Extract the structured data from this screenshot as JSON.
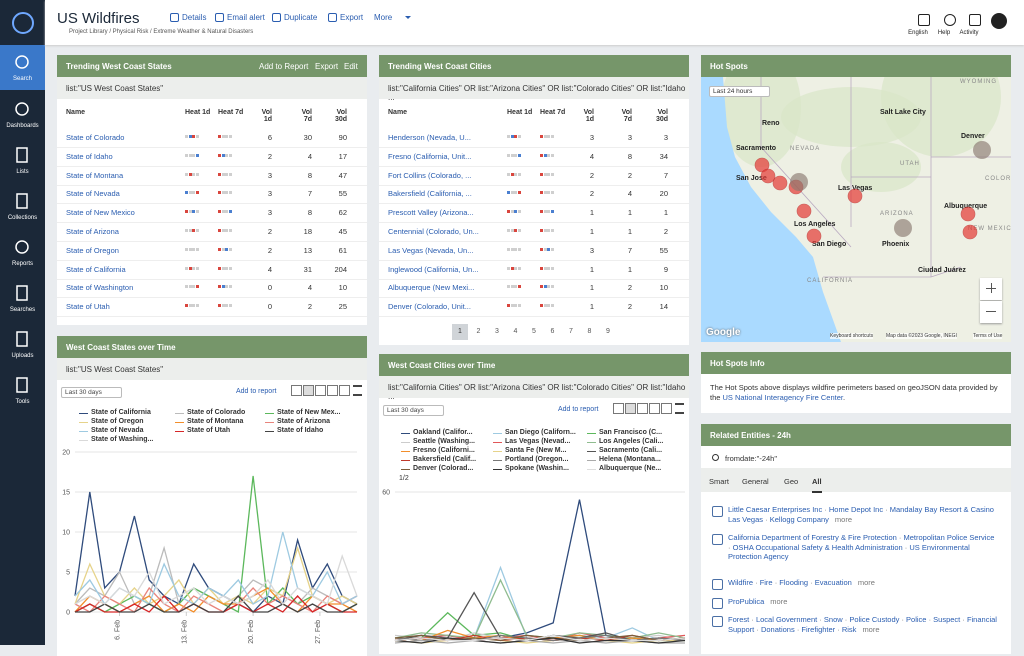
{
  "header": {
    "title": "US Wildfires",
    "actions": [
      "Details",
      "Email alert",
      "Duplicate",
      "Export",
      "More"
    ],
    "breadcrumb": "Project Library / Physical Risk / Extreme Weather & Natural Disasters",
    "right": [
      "English",
      "Help",
      "Activity"
    ]
  },
  "sidebar": [
    "Search",
    "Dashboards",
    "Lists",
    "Collections",
    "Reports",
    "Searches",
    "Uploads",
    "Tools"
  ],
  "states_table": {
    "title": "Trending West Coast States",
    "actions": [
      "Add to Report",
      "Export",
      "Edit"
    ],
    "query": "list:\"US West Coast States\"",
    "columns": [
      "Name",
      "Heat 1d",
      "Heat 7d",
      "Vol 1d",
      "Vol 7d",
      "Vol 30d"
    ],
    "rows": [
      [
        "State of Colorado",
        6,
        30,
        90
      ],
      [
        "State of Idaho",
        2,
        4,
        17
      ],
      [
        "State of Montana",
        3,
        8,
        47
      ],
      [
        "State of Nevada",
        3,
        7,
        55
      ],
      [
        "State of New Mexico",
        3,
        8,
        62
      ],
      [
        "State of Arizona",
        2,
        18,
        45
      ],
      [
        "State of Oregon",
        2,
        13,
        61
      ],
      [
        "State of California",
        4,
        31,
        204
      ],
      [
        "State of Washington",
        0,
        4,
        10
      ],
      [
        "State of Utah",
        0,
        2,
        25
      ]
    ]
  },
  "cities_table": {
    "title": "Trending West Coast Cities",
    "query": "list:\"California Cities\" OR list:\"Arizona Cities\" OR list:\"Colorado Cities\" OR list:\"Idaho ...",
    "columns": [
      "Name",
      "Heat 1d",
      "Heat 7d",
      "Vol 1d",
      "Vol 7d",
      "Vol 30d"
    ],
    "rows": [
      [
        "Henderson (Nevada, U...",
        3,
        3,
        3
      ],
      [
        "Fresno (California, Unit...",
        4,
        8,
        34
      ],
      [
        "Fort Collins (Colorado, ...",
        2,
        2,
        7
      ],
      [
        "Bakersfield (California, ...",
        2,
        4,
        20
      ],
      [
        "Prescott Valley (Arizona...",
        1,
        1,
        1
      ],
      [
        "Centennial (Colorado, Un...",
        1,
        1,
        2
      ],
      [
        "Las Vegas (Nevada, Un...",
        3,
        7,
        55
      ],
      [
        "Inglewood (California, Un...",
        1,
        1,
        9
      ],
      [
        "Albuquerque (New Mexi...",
        1,
        2,
        10
      ],
      [
        "Denver (Colorado, Unit...",
        1,
        2,
        14
      ]
    ],
    "pages": [
      1,
      2,
      3,
      4,
      5,
      6,
      7,
      8,
      9
    ]
  },
  "states_chart": {
    "type": "line",
    "title": "West Coast States over Time",
    "query": "list:\"US West Coast States\"",
    "range": "Last 30 days",
    "add": "Add to report",
    "x": [
      0,
      1,
      2,
      3,
      4,
      5,
      6,
      7,
      8,
      9,
      10,
      11,
      12,
      13,
      14,
      15,
      16,
      17,
      18,
      19
    ],
    "xlim": [
      0,
      19
    ],
    "xticks": [
      {
        "value": 3,
        "label": "6. Feb"
      },
      {
        "value": 7.5,
        "label": "13. Feb"
      },
      {
        "value": 12,
        "label": "20. Feb"
      },
      {
        "value": 16.5,
        "label": "27. Feb"
      }
    ],
    "ylim": [
      0,
      20
    ],
    "yticks": [
      0,
      5,
      10,
      15,
      20
    ],
    "series": [
      {
        "name": "State of California",
        "color": "#2f4b7c",
        "values": [
          2,
          15,
          3,
          5,
          12,
          4,
          2,
          1,
          6,
          3,
          2,
          1,
          0,
          2,
          1,
          9,
          3,
          6,
          2,
          1
        ]
      },
      {
        "name": "State of Colorado",
        "color": "#bbbbbb",
        "values": [
          1,
          3,
          2,
          5,
          1,
          2,
          8,
          1,
          3,
          2,
          1,
          2,
          4,
          3,
          2,
          1,
          3,
          2,
          1,
          2
        ]
      },
      {
        "name": "State of New Mex...",
        "color": "#5cb85c",
        "values": [
          0,
          1,
          0,
          1,
          2,
          1,
          0,
          1,
          3,
          2,
          1,
          0,
          17,
          1,
          3,
          1,
          2,
          1,
          0,
          1
        ]
      },
      {
        "name": "State of Oregon",
        "color": "#e6d38a",
        "values": [
          1,
          6,
          2,
          1,
          3,
          1,
          2,
          4,
          1,
          3,
          1,
          2,
          1,
          3,
          2,
          8,
          2,
          1,
          2,
          1
        ]
      },
      {
        "name": "State of Montana",
        "color": "#f28e2b",
        "values": [
          0,
          2,
          1,
          0,
          1,
          2,
          0,
          1,
          0,
          2,
          1,
          1,
          2,
          3,
          1,
          0,
          2,
          1,
          1,
          0
        ]
      },
      {
        "name": "State of Arizona",
        "color": "#e8847c",
        "values": [
          1,
          0,
          2,
          1,
          0,
          3,
          1,
          0,
          2,
          1,
          0,
          1,
          3,
          1,
          2,
          1,
          0,
          2,
          1,
          2
        ]
      },
      {
        "name": "State of Nevada",
        "color": "#9ecae1",
        "values": [
          2,
          4,
          1,
          3,
          2,
          1,
          6,
          2,
          1,
          3,
          2,
          4,
          1,
          2,
          10,
          3,
          2,
          5,
          1,
          2
        ]
      },
      {
        "name": "State of Utah",
        "color": "#d62728",
        "values": [
          0,
          1,
          0,
          0,
          1,
          0,
          2,
          0,
          1,
          0,
          0,
          1,
          0,
          1,
          0,
          2,
          0,
          1,
          0,
          0
        ]
      },
      {
        "name": "State of Idaho",
        "color": "#444444",
        "values": [
          0,
          0,
          1,
          0,
          0,
          1,
          0,
          0,
          1,
          0,
          0,
          2,
          0,
          0,
          1,
          0,
          1,
          0,
          0,
          1
        ]
      },
      {
        "name": "State of Washing...",
        "color": "#d9d9d9",
        "values": [
          1,
          2,
          1,
          3,
          2,
          5,
          1,
          2,
          3,
          1,
          2,
          1,
          2,
          4,
          1,
          3,
          2,
          1,
          7,
          2
        ]
      }
    ]
  },
  "cities_chart": {
    "type": "line",
    "title": "West Coast Cities over Time",
    "query": "list:\"California Cities\" OR list:\"Arizona Cities\" OR list:\"Colorado Cities\" OR list:\"Idaho ...",
    "range": "Last 30 days",
    "add": "Add to report",
    "pager": "1/2",
    "x": [
      0,
      1,
      2,
      3,
      4,
      5,
      6,
      7,
      8,
      9,
      10,
      11
    ],
    "xlim": [
      0,
      11
    ],
    "ylim": [
      0,
      60
    ],
    "yticks": [
      60
    ],
    "series": [
      {
        "name": "Oakland (Califor...",
        "color": "#2f4b7c",
        "values": [
          1,
          2,
          3,
          1,
          2,
          4,
          8,
          57,
          3,
          2,
          1,
          2
        ]
      },
      {
        "name": "San Diego (Californ...",
        "color": "#9ecae1",
        "values": [
          2,
          3,
          1,
          2,
          30,
          2,
          1,
          3,
          2,
          6,
          1,
          2
        ]
      },
      {
        "name": "San Francisco (C...",
        "color": "#5cb85c",
        "values": [
          1,
          2,
          12,
          3,
          4,
          1,
          2,
          3,
          1,
          2,
          1,
          1
        ]
      },
      {
        "name": "Seattle (Washing...",
        "color": "#cccccc",
        "values": [
          3,
          2,
          1,
          4,
          2,
          1,
          3,
          2,
          1,
          2,
          3,
          1
        ]
      },
      {
        "name": "Las Vegas (Nevad...",
        "color": "#e15759",
        "values": [
          1,
          2,
          3,
          1,
          2,
          3,
          1,
          4,
          2,
          1,
          2,
          3
        ]
      },
      {
        "name": "Los Angeles (Cali...",
        "color": "#8fbc8f",
        "values": [
          2,
          4,
          3,
          2,
          25,
          3,
          2,
          4,
          3,
          2,
          4,
          2
        ]
      },
      {
        "name": "Fresno (Californi...",
        "color": "#f28e2b",
        "values": [
          2,
          1,
          5,
          2,
          3,
          1,
          2,
          3,
          1,
          2,
          1,
          2
        ]
      },
      {
        "name": "Santa Fe (New M...",
        "color": "#e6d38a",
        "values": [
          1,
          0,
          1,
          2,
          1,
          0,
          1,
          2,
          1,
          0,
          1,
          1
        ]
      },
      {
        "name": "Sacramento (Cali...",
        "color": "#555555",
        "values": [
          1,
          3,
          2,
          20,
          2,
          1,
          3,
          2,
          4,
          1,
          2,
          1
        ]
      },
      {
        "name": "Bakersfield (Calif...",
        "color": "#c0392b",
        "values": [
          1,
          2,
          1,
          3,
          1,
          2,
          1,
          2,
          1,
          3,
          1,
          2
        ]
      },
      {
        "name": "Portland (Oregon...",
        "color": "#777777",
        "values": [
          2,
          1,
          2,
          1,
          3,
          2,
          1,
          2,
          3,
          1,
          2,
          1
        ]
      },
      {
        "name": "Helena (Montana...",
        "color": "#aaaaaa",
        "values": [
          0,
          1,
          0,
          1,
          0,
          1,
          0,
          1,
          0,
          1,
          0,
          0
        ]
      },
      {
        "name": "Denver (Colorad...",
        "color": "#7a5c3a",
        "values": [
          2,
          3,
          1,
          2,
          1,
          3,
          2,
          1,
          2,
          3,
          1,
          2
        ]
      },
      {
        "name": "Spokane (Washin...",
        "color": "#333333",
        "values": [
          1,
          0,
          2,
          1,
          0,
          1,
          2,
          0,
          1,
          1,
          0,
          1
        ]
      },
      {
        "name": "Albuquerque (Ne...",
        "color": "#dddddd",
        "values": [
          1,
          2,
          1,
          1,
          2,
          1,
          3,
          1,
          2,
          1,
          1,
          2
        ]
      }
    ]
  },
  "hot_spots": {
    "title": "Hot Spots",
    "range": "Last 24 hours",
    "labels": [
      "Sacramento",
      "San Jose",
      "Las Vegas",
      "Los Angeles",
      "San Diego",
      "Phoenix",
      "Albuquerque",
      "Denver",
      "Salt Lake City",
      "Reno",
      "Ciudad Juárez",
      "NEVADA",
      "CALIFORNIA",
      "UTAH",
      "ARIZONA",
      "NEW MEXICO",
      "COLORADO",
      "WYOMING"
    ],
    "google": "Google",
    "footer": [
      "Keyboard shortcuts",
      "Map data ©2023 Google, INEGI",
      "Terms of Use"
    ]
  },
  "hot_spots_info": {
    "title": "Hot Spots Info",
    "text": "The Hot Spots above displays wildfire perimeters based on geoJSON data provided by the ",
    "link": "US National Interagency Fire Center",
    "after": "."
  },
  "related": {
    "title": "Related Entities - 24h",
    "query": "fromdate:\"-24h\"",
    "tabs": [
      "Smart",
      "General",
      "Geo",
      "All"
    ],
    "more": "more",
    "groups": [
      [
        "Little Caesar Enterprises Inc",
        "Home Depot Inc",
        "Mandalay Bay Resort & Casino Las Vegas",
        "Kellogg Company"
      ],
      [
        "California Department of Forestry & Fire Protection",
        "Metropolitan Police Service",
        "OSHA Occupational Safety & Health Administration",
        "US Environmental Protection Agency"
      ],
      [
        "Wildfire",
        "Fire",
        "Flooding",
        "Evacuation"
      ],
      [
        "ProPublica"
      ],
      [
        "Forest",
        "Local Government",
        "Snow",
        "Police Custody",
        "Police",
        "Suspect",
        "Financial Support",
        "Donations",
        "Firefighter",
        "Risk"
      ]
    ]
  }
}
